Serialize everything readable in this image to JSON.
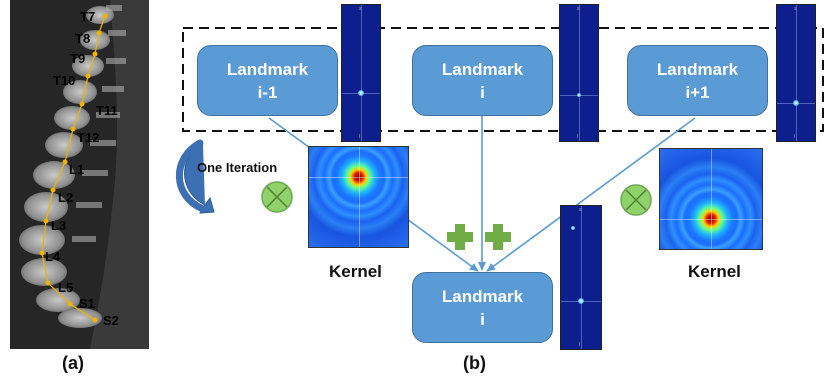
{
  "panel_a": {
    "caption": "(a)",
    "vertebrae": [
      "T7",
      "T8",
      "T9",
      "T10",
      "T11",
      "T12",
      "L1",
      "L2",
      "L3",
      "L4",
      "L5",
      "S1",
      "S2"
    ]
  },
  "panel_b": {
    "caption": "(b)",
    "landmark_prev": {
      "line1": "Landmark",
      "line2": "i-1"
    },
    "landmark_cur": {
      "line1": "Landmark",
      "line2": "i"
    },
    "landmark_next": {
      "line1": "Landmark",
      "line2": "i+1"
    },
    "landmark_out": {
      "line1": "Landmark",
      "line2": "i"
    },
    "iteration_label": "One Iteration",
    "kernel_left": "Kernel",
    "kernel_right": "Kernel"
  },
  "colors": {
    "box_fill": "#5b9bd5",
    "box_border": "#41719c",
    "arrow": "#5b9bd5",
    "plus": "#70ad47",
    "otimes": "#70ad47",
    "landmark_dot": "#f0b400"
  }
}
